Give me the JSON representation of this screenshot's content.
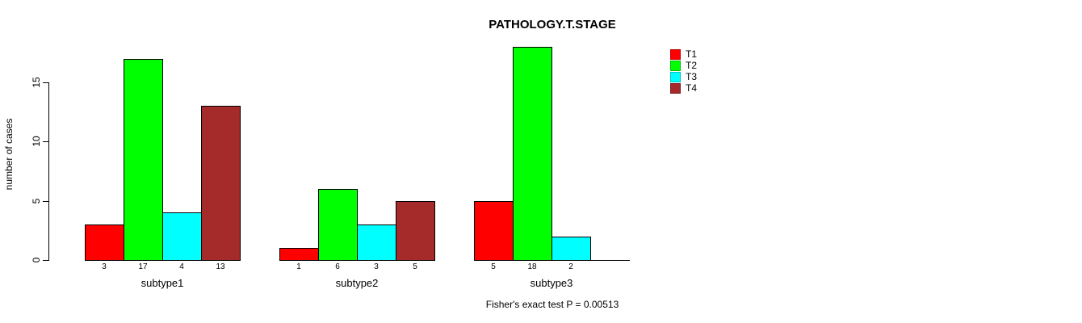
{
  "chart_data": {
    "type": "bar",
    "title": "PATHOLOGY.T.STAGE",
    "ylabel": "number of cases",
    "xlabel": "",
    "categories": [
      "subtype1",
      "subtype2",
      "subtype3"
    ],
    "series": [
      {
        "name": "T1",
        "color": "#ff0000",
        "values": [
          3,
          1,
          5
        ]
      },
      {
        "name": "T2",
        "color": "#00ff00",
        "values": [
          17,
          6,
          18
        ]
      },
      {
        "name": "T3",
        "color": "#00ffff",
        "values": [
          4,
          3,
          2
        ]
      },
      {
        "name": "T4",
        "color": "#a52a2a",
        "values": [
          13,
          5,
          0
        ]
      }
    ],
    "yticks": [
      0,
      5,
      10,
      15
    ],
    "ylim": [
      0,
      18
    ],
    "grid": false,
    "bar_value_labels": true,
    "legend": {
      "position": "top-right",
      "entries": [
        "T1",
        "T2",
        "T3",
        "T4"
      ]
    },
    "annotation": "Fisher's exact test P = 0.00513"
  }
}
